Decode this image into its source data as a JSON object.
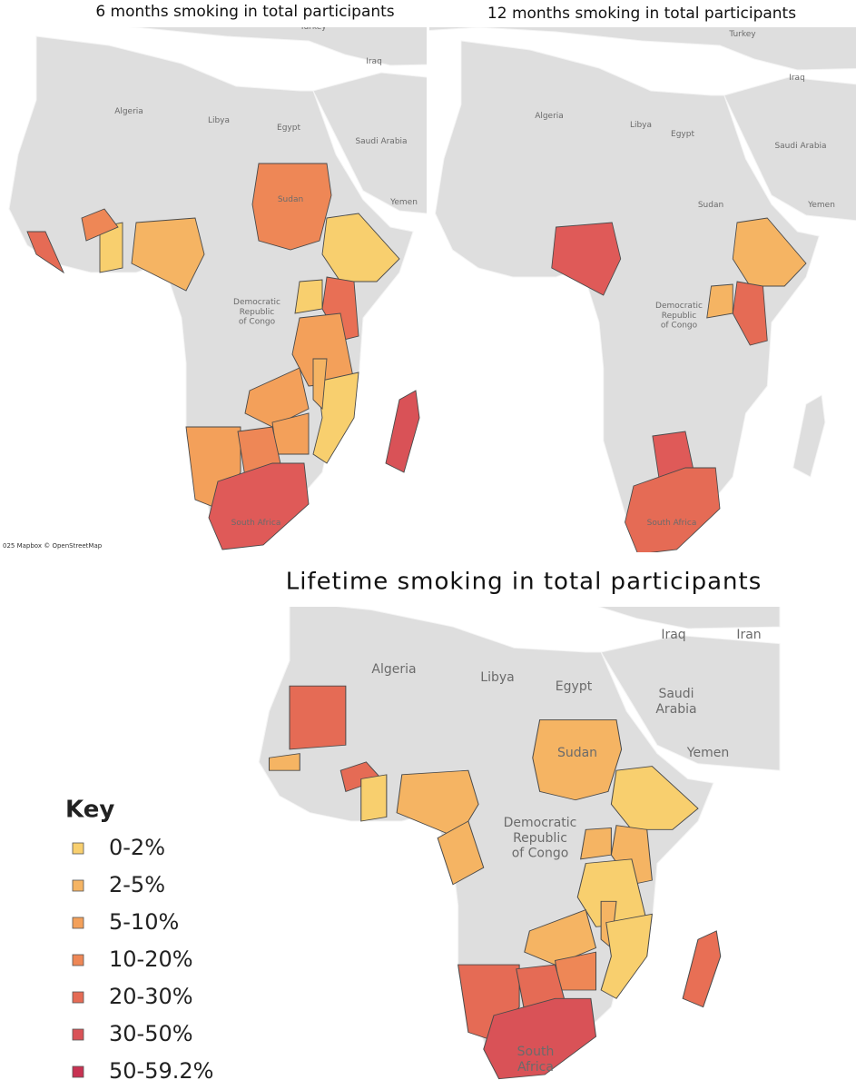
{
  "maps": [
    {
      "title": "6 months smoking in total participants",
      "labels": [
        {
          "lines": [
            "Turkey"
          ]
        },
        {
          "lines": [
            "Iraq"
          ]
        },
        {
          "lines": [
            "Algeria"
          ]
        },
        {
          "lines": [
            "Libya"
          ]
        },
        {
          "lines": [
            "Egypt"
          ]
        },
        {
          "lines": [
            "Saudi Arabia"
          ]
        },
        {
          "lines": [
            "Yemen"
          ]
        },
        {
          "lines": [
            "Sudan"
          ]
        },
        {
          "lines": [
            "Democratic",
            "Republic",
            "of Congo"
          ]
        },
        {
          "lines": [
            "South Africa"
          ]
        }
      ],
      "attribution": "025 Mapbox © OpenStreetMap"
    },
    {
      "title": "12 months smoking in total participants",
      "labels": [
        {
          "lines": [
            "Turkey"
          ]
        },
        {
          "lines": [
            "Iraq"
          ]
        },
        {
          "lines": [
            "Algeria"
          ]
        },
        {
          "lines": [
            "Libya"
          ]
        },
        {
          "lines": [
            "Egypt"
          ]
        },
        {
          "lines": [
            "Saudi Arabia"
          ]
        },
        {
          "lines": [
            "Sudan"
          ]
        },
        {
          "lines": [
            "Yemen"
          ]
        },
        {
          "lines": [
            "Democratic",
            "Republic",
            "of Congo"
          ]
        },
        {
          "lines": [
            "South Africa"
          ]
        }
      ]
    },
    {
      "title": "Lifetime smoking in total participants",
      "labels": [
        {
          "lines": [
            "Iraq"
          ]
        },
        {
          "lines": [
            "Iran"
          ]
        },
        {
          "lines": [
            "Algeria"
          ]
        },
        {
          "lines": [
            "Libya"
          ]
        },
        {
          "lines": [
            "Egypt"
          ]
        },
        {
          "lines": [
            "Saudi",
            "Arabia"
          ]
        },
        {
          "lines": [
            "Yemen"
          ]
        },
        {
          "lines": [
            "Sudan"
          ]
        },
        {
          "lines": [
            "Democratic",
            "Republic",
            "of Congo"
          ]
        },
        {
          "lines": [
            "South",
            "Africa"
          ]
        }
      ]
    }
  ],
  "key": {
    "title": "Key",
    "items": [
      {
        "label": "0-2%",
        "color": "#f8cf6e"
      },
      {
        "label": "2-5%",
        "color": "#f5b463"
      },
      {
        "label": "5-10%",
        "color": "#f3a05a"
      },
      {
        "label": "10-20%",
        "color": "#ee8756"
      },
      {
        "label": "20-30%",
        "color": "#e56b55"
      },
      {
        "label": "30-50%",
        "color": "#d95257"
      },
      {
        "label": "50-59.2%",
        "color": "#c83252"
      }
    ]
  }
}
